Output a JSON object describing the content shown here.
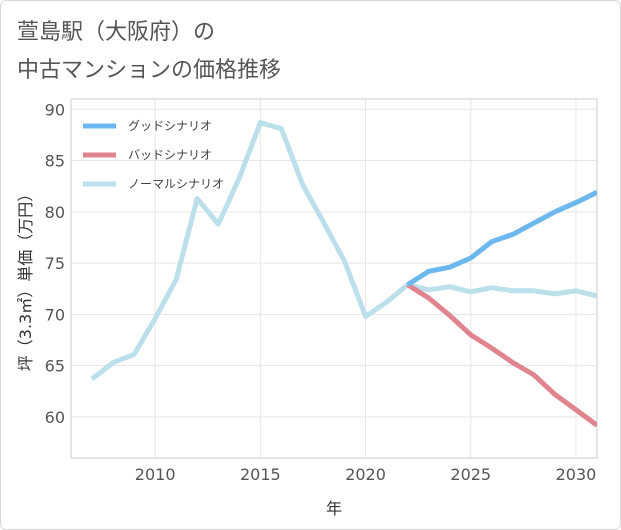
{
  "title": {
    "line1": "萱島駅（大阪府）の",
    "line2": "中古マンションの価格推移"
  },
  "chart_data": {
    "type": "line",
    "xlabel": "年",
    "ylabel": "坪（3.3㎡）単価（万円）",
    "xlim": [
      2006,
      2031
    ],
    "ylim": [
      56,
      91
    ],
    "xticks": [
      2010,
      2015,
      2020,
      2025,
      2030
    ],
    "yticks": [
      60,
      65,
      70,
      75,
      80,
      85,
      90
    ],
    "grid": true,
    "legend_position": "top-left",
    "series": [
      {
        "name": "グッドシナリオ",
        "color": "#6cb8ee",
        "x": [
          2022,
          2023,
          2024,
          2025,
          2026,
          2027,
          2028,
          2029,
          2030,
          2031
        ],
        "values": [
          72.9,
          74.2,
          74.6,
          75.5,
          77.1,
          77.8,
          78.9,
          80.0,
          80.9,
          81.9
        ]
      },
      {
        "name": "バッドシナリオ",
        "color": "#e0848e",
        "x": [
          2022,
          2023,
          2024,
          2025,
          2026,
          2027,
          2028,
          2029,
          2030,
          2031
        ],
        "values": [
          72.9,
          71.6,
          69.9,
          68.0,
          66.7,
          65.3,
          64.1,
          62.2,
          60.7,
          59.2
        ]
      },
      {
        "name": "ノーマルシナリオ",
        "color": "#bcdfec",
        "x": [
          2007,
          2008,
          2009,
          2010,
          2011,
          2012,
          2013,
          2014,
          2015,
          2016,
          2017,
          2018,
          2019,
          2020,
          2021,
          2022,
          2023,
          2024,
          2025,
          2026,
          2027,
          2028,
          2029,
          2030,
          2031
        ],
        "values": [
          63.7,
          65.3,
          66.1,
          69.6,
          73.4,
          81.3,
          78.8,
          83.3,
          88.7,
          88.1,
          82.7,
          79.0,
          75.2,
          69.8,
          71.2,
          72.9,
          72.4,
          72.7,
          72.2,
          72.6,
          72.3,
          72.3,
          72.0,
          72.3,
          71.8
        ]
      }
    ]
  }
}
